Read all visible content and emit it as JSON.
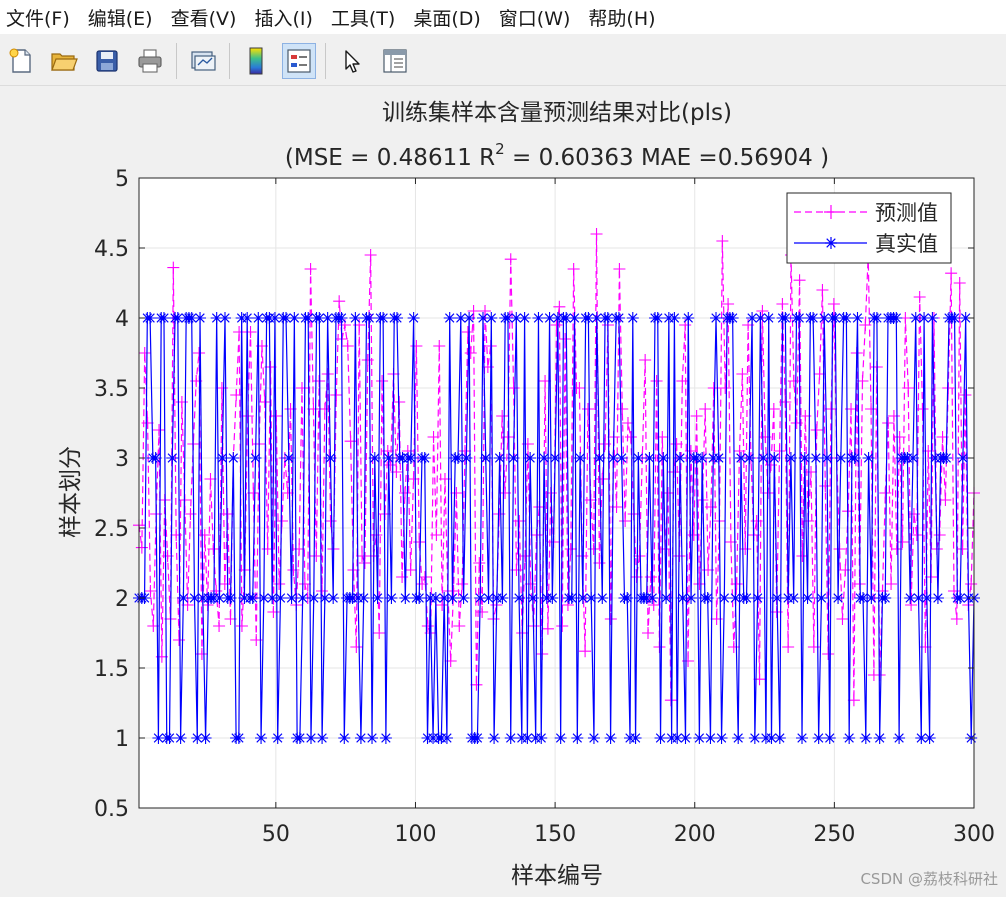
{
  "menu": [
    {
      "label": "文件(F)"
    },
    {
      "label": "编辑(E)"
    },
    {
      "label": "查看(V)"
    },
    {
      "label": "插入(I)"
    },
    {
      "label": "工具(T)"
    },
    {
      "label": "桌面(D)"
    },
    {
      "label": "窗口(W)"
    },
    {
      "label": "帮助(H)"
    }
  ],
  "toolbar": {
    "icons": [
      "new-figure-icon",
      "open-file-icon",
      "save-icon",
      "print-icon",
      "link-plot-icon",
      "colorbar-icon",
      "legend-icon",
      "pointer-icon",
      "property-inspector-icon"
    ]
  },
  "colors": {
    "predicted": "#ff00ff",
    "actual": "#0000ff",
    "axes_bg": "#ffffff",
    "grid": "#e6e6e6"
  },
  "watermark": "CSDN @荔枝科研社",
  "chart_data": {
    "type": "line",
    "title": "训练集样本含量预测结果对比(pls)",
    "subtitle": {
      "prefix": "(MSE = 0.48611 R",
      "sup": "2",
      "suffix": " = 0.60363 MAE =0.56904 )"
    },
    "xlabel": "样本编号",
    "ylabel": "样本划分",
    "xlim": [
      1,
      300
    ],
    "ylim": [
      0.5,
      5
    ],
    "xticks": [
      50,
      100,
      150,
      200,
      250,
      300
    ],
    "yticks": [
      0.5,
      1,
      1.5,
      2,
      2.5,
      3,
      3.5,
      4,
      4.5,
      5
    ],
    "ytick_labels": [
      "0.5",
      "1",
      "1.5",
      "2",
      "2.5",
      "3",
      "3.5",
      "4",
      "4.5",
      "5"
    ],
    "grid": true,
    "legend_position": "top-right",
    "series": [
      {
        "name": "预测值",
        "style": "dashed",
        "marker": "+",
        "color": "#ff00ff",
        "x_from": 1,
        "x_to": 300,
        "values": [
          2.52,
          2.36,
          3.75,
          3.25,
          2.05,
          1.8,
          2.6,
          3.2,
          1.58,
          2.7,
          2.3,
          1.85,
          4.36,
          2.45,
          1.7,
          3.4,
          2.7,
          1.95,
          2.6,
          3.1,
          3.55,
          3.75,
          1.6,
          2.45,
          1.95,
          2.85,
          2.35,
          2.05,
          1.8,
          3.5,
          2.1,
          2.6,
          1.85,
          3.0,
          3.45,
          3.9,
          1.8,
          2.2,
          3.3,
          3.9,
          2.75,
          1.7,
          3.1,
          3.8,
          3.4,
          2.35,
          3.65,
          1.9,
          3.3,
          2.1,
          2.55,
          3.0,
          2.75,
          3.35,
          2.2,
          1.95,
          2.35,
          3.5,
          2.1,
          2.0,
          4.35,
          3.35,
          2.3,
          3.55,
          2.05,
          3.35,
          3.6,
          2.55,
          2.35,
          3.45,
          4.12,
          3.85,
          3.95,
          3.8,
          3.12,
          2.2,
          1.65,
          3.95,
          2.3,
          2.25,
          3.7,
          4.45,
          2.3,
          2.45,
          1.75,
          3.55,
          2.6,
          3.05,
          2.95,
          3.6,
          2.9,
          3.4,
          2.15,
          2.75,
          3.05,
          2.2,
          2.85,
          3.8,
          2.4,
          2.1,
          2.15,
          1.8,
          1.75,
          3.15,
          2.45,
          3.8,
          1.95,
          2.85,
          2.05,
          1.55,
          2.05,
          2.75,
          1.8,
          2.1,
          3.05,
          3.9,
          3.75,
          4.05,
          1.38,
          2.25,
          1.9,
          4.05,
          3.65,
          3.8,
          1.85,
          1.95,
          2.6,
          3.3,
          2.75,
          3.15,
          4.42,
          3.5,
          2.2,
          2.55,
          1.75,
          2.3,
          3.1,
          2.1,
          1.8,
          2.45,
          2.65,
          1.6,
          3.55,
          1.78,
          2.75,
          2.4,
          3.95,
          4.08,
          1.8,
          3.85,
          1.95,
          2.35,
          4.35,
          3.5,
          3.5,
          2.3,
          1.62,
          3.35,
          2.7,
          2.35,
          4.6,
          2.25,
          2.85,
          3.1,
          3.95,
          1.85,
          3.15,
          2.65,
          4.35,
          3.35,
          2.55,
          3.25,
          3.15,
          2.6,
          2.15,
          2.3,
          3.0,
          3.7,
          1.75,
          2.15,
          1.95,
          3.55,
          1.65,
          3.15,
          2.35,
          2.75,
          1.27,
          2.9,
          3.1,
          2.3,
          3.55,
          3.95,
          1.55,
          3.05,
          2.45,
          3.3,
          2.1,
          2.7,
          3.35,
          2.2,
          2.65,
          3.5,
          1.85,
          2.55,
          4.55,
          3.5,
          4.1,
          2.4,
          1.65,
          2.1,
          3.05,
          3.6,
          2.35,
          3.95,
          3.0,
          2.45,
          2.55,
          1.42,
          4.05,
          3.15,
          2.75,
          2.95,
          3.35,
          1.9,
          3.05,
          4.1,
          3.4,
          1.65,
          4.45,
          3.55,
          3.25,
          4.27,
          2.3,
          3.3,
          2.55,
          2.9,
          1.65,
          3.2,
          3.6,
          4.2,
          2.8,
          1.6,
          3.35,
          4.1,
          3.0,
          2.35,
          1.85,
          2.2,
          2.62,
          3.35,
          1.27,
          3.75,
          2.1,
          3.55,
          3.95,
          4.45,
          3.35,
          1.45,
          3.65,
          1.45,
          2.05,
          2.75,
          3.25,
          2.1,
          3.3,
          2.35,
          3.15,
          2.4,
          4.0,
          3.5,
          1.95,
          2.6,
          2.45,
          4.15,
          3.35,
          1.65,
          3.05,
          2.15,
          4.0,
          2.35,
          2.45,
          3.15,
          2.7,
          3.5,
          4.32,
          2.05,
          1.85,
          4.25,
          2.35,
          3.45,
          1.95,
          2.1,
          2.75
        ]
      },
      {
        "name": "真实值",
        "style": "solid",
        "marker": "*",
        "color": "#0000ff",
        "x_from": 1,
        "x_to": 300,
        "values": [
          2,
          2,
          2,
          4,
          4,
          3,
          3,
          1,
          4,
          4,
          1,
          1,
          3,
          4,
          4,
          1,
          2,
          4,
          4,
          4,
          2,
          1,
          4,
          2,
          1,
          2,
          2,
          2,
          4,
          2,
          3,
          4,
          2,
          2,
          3,
          1,
          1,
          4,
          2,
          4,
          2,
          2,
          3,
          4,
          1,
          2,
          4,
          4,
          2,
          4,
          1,
          2,
          4,
          4,
          3,
          2,
          4,
          1,
          1,
          2,
          4,
          4,
          1,
          2,
          4,
          4,
          1,
          2,
          4,
          3,
          2,
          4,
          4,
          4,
          1,
          2,
          2,
          2,
          4,
          2,
          1,
          2,
          4,
          4,
          1,
          3,
          2,
          4,
          4,
          1,
          3,
          2,
          4,
          4,
          3,
          3,
          2,
          3,
          3,
          4,
          2,
          2,
          3,
          3,
          1,
          2,
          1,
          2,
          1,
          1,
          2,
          1,
          4,
          2,
          3,
          3,
          4,
          2,
          3,
          4,
          1,
          1,
          1,
          2,
          4,
          3,
          2,
          4,
          1,
          2,
          3,
          2,
          4,
          4,
          1,
          3,
          4,
          2,
          1,
          4,
          1,
          3,
          2,
          1,
          4,
          1,
          3,
          2,
          4,
          2,
          3,
          4,
          1,
          4,
          4,
          2,
          2,
          4,
          1,
          3,
          2,
          4,
          4,
          2,
          1,
          4,
          3,
          2,
          4,
          4,
          1,
          3,
          4,
          4,
          3,
          2,
          2,
          1,
          4,
          1,
          3,
          2,
          2,
          2,
          3,
          2,
          4,
          4,
          1,
          3,
          2,
          4,
          1,
          4,
          1,
          3,
          2,
          1,
          4,
          2,
          3,
          3,
          1,
          3,
          2,
          2,
          1,
          3,
          4,
          3,
          1,
          2,
          4,
          4,
          4,
          2,
          1,
          3,
          2,
          2,
          3,
          4,
          1,
          2,
          4,
          3,
          1,
          4,
          1,
          3,
          2,
          1,
          4,
          4,
          2,
          3,
          2,
          4,
          4,
          1,
          3,
          2,
          4,
          4,
          3,
          1,
          2,
          4,
          3,
          1,
          4,
          4,
          2,
          3,
          4,
          4,
          1,
          3,
          3,
          4,
          2,
          2,
          1,
          3,
          2,
          4,
          4,
          1,
          2,
          2,
          4,
          4,
          4,
          4,
          1,
          3,
          3,
          3,
          2,
          3,
          4,
          2,
          1,
          4,
          2,
          1,
          4,
          3,
          2,
          3,
          3,
          3,
          4,
          4,
          4,
          2,
          2,
          3,
          4,
          2,
          1,
          2
        ]
      }
    ]
  }
}
